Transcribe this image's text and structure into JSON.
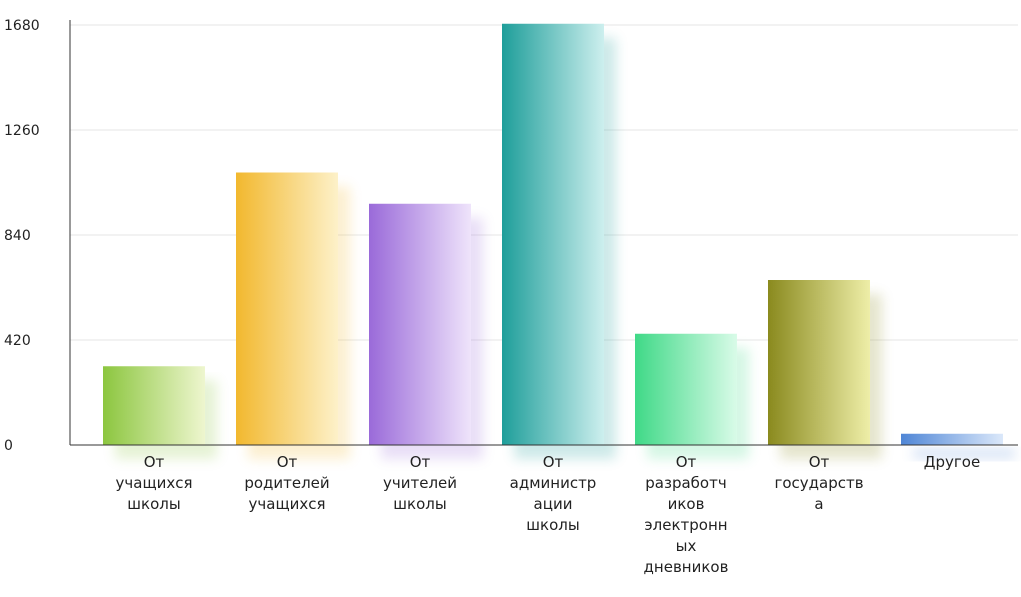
{
  "chart_data": {
    "type": "bar",
    "title": "",
    "xlabel": "",
    "ylabel": "",
    "ylim": [
      0,
      1680
    ],
    "yticks": [
      0,
      420,
      840,
      1260,
      1680
    ],
    "categories": [
      [
        "От",
        "учащихся",
        "школы"
      ],
      [
        "От",
        "родителей",
        "учащихся"
      ],
      [
        "От",
        "учителей",
        "школы"
      ],
      [
        "От",
        "администр",
        "ации",
        "школы"
      ],
      [
        "От",
        "разработч",
        "иков",
        "электронн",
        "ых",
        "дневников"
      ],
      [
        "От",
        "государств",
        "а"
      ],
      [
        "Другое"
      ]
    ],
    "values": [
      315,
      1090,
      965,
      1685,
      445,
      660,
      45
    ],
    "colors": [
      [
        "#8cc63f",
        "#eef6cf"
      ],
      [
        "#f2b82e",
        "#fdf1c9"
      ],
      [
        "#9a6ad9",
        "#efe4fb"
      ],
      [
        "#1e9e9a",
        "#cdefee"
      ],
      [
        "#3fd987",
        "#d9fbe8"
      ],
      [
        "#8a8a1e",
        "#eeeea8"
      ],
      [
        "#4f86d6",
        "#dbe8fa"
      ]
    ],
    "grid": true,
    "legend": "none"
  }
}
